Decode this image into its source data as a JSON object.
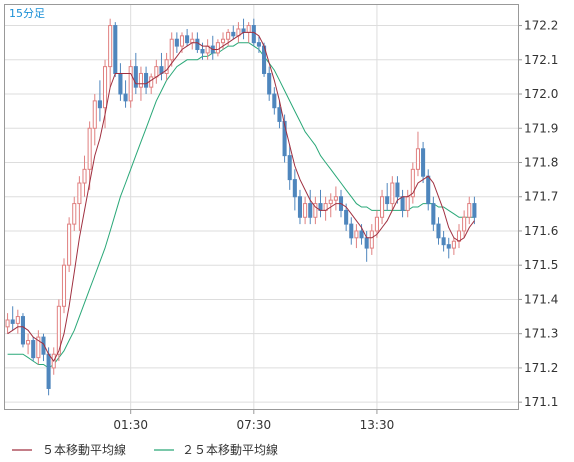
{
  "chart_data": {
    "type": "candlestick",
    "interval_label": "15分足",
    "ylim": [
      171.08,
      172.26
    ],
    "y_ticks": [
      "171.1",
      "171.2",
      "171.3",
      "171.4",
      "171.5",
      "171.6",
      "171.7",
      "171.8",
      "171.9",
      "172.0",
      "172.1",
      "172.2"
    ],
    "x_ticks": [
      {
        "index": 24,
        "label": "01:30"
      },
      {
        "index": 48,
        "label": "07:30"
      },
      {
        "index": 72,
        "label": "13:30"
      }
    ],
    "bars_in_view": 100,
    "colors": {
      "up": "#e08080",
      "down": "#4f86bd",
      "ma5": "#a03040",
      "ma25": "#2aa878",
      "grid": "#dddddd",
      "frame": "#999999"
    },
    "legend": [
      {
        "name": "５本移動平均線",
        "color": "#a03040"
      },
      {
        "name": "２５本移動平均線",
        "color": "#2aa878"
      }
    ],
    "ohlc": [
      [
        171.32,
        171.36,
        171.3,
        171.34
      ],
      [
        171.34,
        171.38,
        171.31,
        171.33
      ],
      [
        171.33,
        171.37,
        171.3,
        171.35
      ],
      [
        171.35,
        171.36,
        171.26,
        171.27
      ],
      [
        171.27,
        171.3,
        171.24,
        171.28
      ],
      [
        171.28,
        171.29,
        171.22,
        171.23
      ],
      [
        171.23,
        171.31,
        171.21,
        171.29
      ],
      [
        171.29,
        171.3,
        171.22,
        171.24
      ],
      [
        171.24,
        171.26,
        171.12,
        171.14
      ],
      [
        171.2,
        171.26,
        171.18,
        171.24
      ],
      [
        171.24,
        171.4,
        171.22,
        171.38
      ],
      [
        171.38,
        171.52,
        171.36,
        171.5
      ],
      [
        171.5,
        171.64,
        171.48,
        171.62
      ],
      [
        171.62,
        171.7,
        171.6,
        171.68
      ],
      [
        171.68,
        171.76,
        171.6,
        171.74
      ],
      [
        171.74,
        171.82,
        171.7,
        171.78
      ],
      [
        171.78,
        171.92,
        171.72,
        171.9
      ],
      [
        171.9,
        172.0,
        171.85,
        171.98
      ],
      [
        171.98,
        172.04,
        171.92,
        171.96
      ],
      [
        171.96,
        172.1,
        171.9,
        172.08
      ],
      [
        172.08,
        172.22,
        172.02,
        172.2
      ],
      [
        172.2,
        172.21,
        172.05,
        172.06
      ],
      [
        172.06,
        172.09,
        171.98,
        172.0
      ],
      [
        172.0,
        172.04,
        171.96,
        171.98
      ],
      [
        171.98,
        172.1,
        171.96,
        172.08
      ],
      [
        172.08,
        172.12,
        172.0,
        172.02
      ],
      [
        172.02,
        172.08,
        171.98,
        172.06
      ],
      [
        172.06,
        172.08,
        172.0,
        172.02
      ],
      [
        172.02,
        172.06,
        172.0,
        172.05
      ],
      [
        172.05,
        172.1,
        172.03,
        172.08
      ],
      [
        172.08,
        172.12,
        172.04,
        172.06
      ],
      [
        172.06,
        172.12,
        172.04,
        172.1
      ],
      [
        172.1,
        172.18,
        172.08,
        172.16
      ],
      [
        172.16,
        172.18,
        172.12,
        172.14
      ],
      [
        172.14,
        172.18,
        172.12,
        172.17
      ],
      [
        172.17,
        172.19,
        172.14,
        172.15
      ],
      [
        172.15,
        172.18,
        172.13,
        172.16
      ],
      [
        172.16,
        172.18,
        172.12,
        172.13
      ],
      [
        172.13,
        172.15,
        172.1,
        172.12
      ],
      [
        172.12,
        172.16,
        172.1,
        172.14
      ],
      [
        172.14,
        172.17,
        172.1,
        172.12
      ],
      [
        172.12,
        172.16,
        172.11,
        172.15
      ],
      [
        172.15,
        172.18,
        172.13,
        172.16
      ],
      [
        172.16,
        172.19,
        172.14,
        172.18
      ],
      [
        172.18,
        172.2,
        172.16,
        172.17
      ],
      [
        172.17,
        172.21,
        172.15,
        172.19
      ],
      [
        172.19,
        172.22,
        172.16,
        172.18
      ],
      [
        172.18,
        172.21,
        172.15,
        172.2
      ],
      [
        172.2,
        172.22,
        172.14,
        172.15
      ],
      [
        172.15,
        172.17,
        172.12,
        172.14
      ],
      [
        172.14,
        172.15,
        172.05,
        172.06
      ],
      [
        172.06,
        172.08,
        171.98,
        172.0
      ],
      [
        172.0,
        172.02,
        171.94,
        171.96
      ],
      [
        171.96,
        171.98,
        171.9,
        171.92
      ],
      [
        171.92,
        171.94,
        171.8,
        171.82
      ],
      [
        171.82,
        171.85,
        171.72,
        171.75
      ],
      [
        171.75,
        171.78,
        171.66,
        171.7
      ],
      [
        171.7,
        171.72,
        171.62,
        171.64
      ],
      [
        171.64,
        171.7,
        171.62,
        171.68
      ],
      [
        171.68,
        171.72,
        171.62,
        171.64
      ],
      [
        171.64,
        171.7,
        171.62,
        171.68
      ],
      [
        171.68,
        171.72,
        171.64,
        171.66
      ],
      [
        171.66,
        171.7,
        171.63,
        171.68
      ],
      [
        171.68,
        171.71,
        171.64,
        171.69
      ],
      [
        171.69,
        171.73,
        171.66,
        171.7
      ],
      [
        171.7,
        171.72,
        171.64,
        171.66
      ],
      [
        171.66,
        171.68,
        171.6,
        171.62
      ],
      [
        171.62,
        171.64,
        171.56,
        171.58
      ],
      [
        171.58,
        171.62,
        171.55,
        171.6
      ],
      [
        171.6,
        171.62,
        171.56,
        171.58
      ],
      [
        171.58,
        171.6,
        171.51,
        171.55
      ],
      [
        171.55,
        171.62,
        171.53,
        171.6
      ],
      [
        171.6,
        171.66,
        171.58,
        171.64
      ],
      [
        171.64,
        171.72,
        171.62,
        171.7
      ],
      [
        171.7,
        171.74,
        171.66,
        171.68
      ],
      [
        171.68,
        171.76,
        171.66,
        171.74
      ],
      [
        171.74,
        171.76,
        171.68,
        171.7
      ],
      [
        171.7,
        171.72,
        171.64,
        171.66
      ],
      [
        171.66,
        171.72,
        171.64,
        171.7
      ],
      [
        171.7,
        171.8,
        171.68,
        171.78
      ],
      [
        171.78,
        171.89,
        171.76,
        171.84
      ],
      [
        171.84,
        171.86,
        171.74,
        171.76
      ],
      [
        171.76,
        171.78,
        171.66,
        171.68
      ],
      [
        171.68,
        171.7,
        171.6,
        171.62
      ],
      [
        171.62,
        171.64,
        171.56,
        171.58
      ],
      [
        171.58,
        171.6,
        171.54,
        171.56
      ],
      [
        171.56,
        171.58,
        171.52,
        171.55
      ],
      [
        171.55,
        171.58,
        171.53,
        171.57
      ],
      [
        171.57,
        171.62,
        171.55,
        171.6
      ],
      [
        171.6,
        171.66,
        171.58,
        171.64
      ],
      [
        171.64,
        171.7,
        171.62,
        171.68
      ],
      [
        171.68,
        171.7,
        171.62,
        171.64
      ]
    ],
    "ma5": [
      171.3,
      171.31,
      171.32,
      171.32,
      171.31,
      171.29,
      171.28,
      171.27,
      171.24,
      171.22,
      171.25,
      171.3,
      171.38,
      171.48,
      171.58,
      171.66,
      171.74,
      171.82,
      171.87,
      171.94,
      172.02,
      172.06,
      172.06,
      172.06,
      172.06,
      172.03,
      172.03,
      172.03,
      172.04,
      172.05,
      172.06,
      172.07,
      172.09,
      172.11,
      172.13,
      172.14,
      172.15,
      172.15,
      172.14,
      172.14,
      172.13,
      172.13,
      172.14,
      172.15,
      172.16,
      172.17,
      172.18,
      172.18,
      172.18,
      172.17,
      172.14,
      172.09,
      172.04,
      171.98,
      171.91,
      171.85,
      171.79,
      171.75,
      171.72,
      171.69,
      171.67,
      171.66,
      171.66,
      171.67,
      171.68,
      171.68,
      171.67,
      171.65,
      171.63,
      171.61,
      171.58,
      171.58,
      171.59,
      171.61,
      171.63,
      171.66,
      171.69,
      171.7,
      171.7,
      171.71,
      171.74,
      171.75,
      171.76,
      171.74,
      171.7,
      171.66,
      171.61,
      171.58,
      171.57,
      171.58,
      171.61,
      171.63
    ],
    "ma25": [
      171.24,
      171.24,
      171.24,
      171.24,
      171.23,
      171.22,
      171.21,
      171.21,
      171.2,
      171.21,
      171.23,
      171.25,
      171.28,
      171.31,
      171.35,
      171.39,
      171.43,
      171.47,
      171.51,
      171.55,
      171.6,
      171.65,
      171.7,
      171.74,
      171.78,
      171.82,
      171.86,
      171.9,
      171.94,
      171.98,
      172.01,
      172.04,
      172.06,
      172.08,
      172.09,
      172.1,
      172.1,
      172.1,
      172.11,
      172.11,
      172.12,
      172.12,
      172.13,
      172.14,
      172.14,
      172.15,
      172.15,
      172.15,
      172.14,
      172.13,
      172.11,
      172.09,
      172.07,
      172.04,
      172.01,
      171.98,
      171.95,
      171.92,
      171.89,
      171.87,
      171.85,
      171.82,
      171.8,
      171.78,
      171.76,
      171.74,
      171.72,
      171.7,
      171.68,
      171.67,
      171.67,
      171.66,
      171.66,
      171.66,
      171.66,
      171.66,
      171.66,
      171.66,
      171.66,
      171.67,
      171.67,
      171.68,
      171.68,
      171.68,
      171.67,
      171.67,
      171.66,
      171.65,
      171.64,
      171.64,
      171.64,
      171.64
    ]
  }
}
